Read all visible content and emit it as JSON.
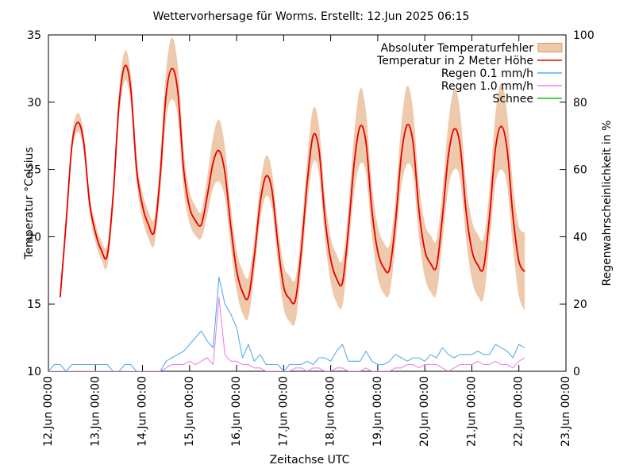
{
  "header": {
    "title": "Wettervorhersage für Worms. Erstellt: 12.Jun 2025 06:15"
  },
  "axes": {
    "x_label": "Zeitachse UTC",
    "y_left_label": "Temperatur °Celsius",
    "y_right_label": "Regenwahrscheinlichkeit in %"
  },
  "chart_data": {
    "type": "line",
    "title": "Wettervorhersage für Worms. Erstellt: 12.Jun 2025 06:15",
    "xlabel": "Zeitachse UTC",
    "ylabel_left": "Temperatur °Celsius",
    "ylabel_right": "Regenwahrscheinlichkeit in %",
    "x_tick_labels": [
      "12.Jun 00:00",
      "13.Jun 00:00",
      "14.Jun 00:00",
      "15.Jun 00:00",
      "16.Jun 00:00",
      "17.Jun 00:00",
      "18.Jun 00:00",
      "19.Jun 00:00",
      "20.Jun 00:00",
      "21.Jun 00:00",
      "22.Jun 00:00",
      "23.Jun 00:00"
    ],
    "xlim_hours": [
      0,
      264
    ],
    "ylim_left": [
      10,
      35
    ],
    "yticks_left": [
      10,
      15,
      20,
      25,
      30,
      35
    ],
    "ylim_right": [
      0,
      100
    ],
    "yticks_right": [
      0,
      20,
      40,
      60,
      80,
      100
    ],
    "grid": false,
    "legend_position": "top-right-inside",
    "legend": [
      {
        "label": "Absoluter Temperaturfehler",
        "style": "band",
        "color": "#eec9ab"
      },
      {
        "label": "Temperatur in 2 Meter Höhe",
        "style": "line",
        "color": "#e60000"
      },
      {
        "label": "Regen 0.1 mm/h",
        "style": "line",
        "color": "#56aee8"
      },
      {
        "label": "Regen 1.0 mm/h",
        "style": "line",
        "color": "#ee82ee"
      },
      {
        "label": "Schnee",
        "style": "line",
        "color": "#00cc00"
      }
    ],
    "series": [
      {
        "name": "Absoluter Temperaturfehler",
        "type": "band",
        "axis": "left",
        "color": "#eec9ab",
        "start_hour": 6,
        "step_hours": 3,
        "upper": [
          15.9,
          21.5,
          27.4,
          29.2,
          27.7,
          23.2,
          21.0,
          19.7,
          19.4,
          23.9,
          30.8,
          33.8,
          32.1,
          26.0,
          23.3,
          21.9,
          21.4,
          25.8,
          32.3,
          34.8,
          32.7,
          26.5,
          23.4,
          22.3,
          21.9,
          24.4,
          27.4,
          28.7,
          26.7,
          22.3,
          19.0,
          17.5,
          17.0,
          19.8,
          23.8,
          26.0,
          24.9,
          20.9,
          17.9,
          17.1,
          16.9,
          20.5,
          25.7,
          29.5,
          28.3,
          23.1,
          20.0,
          18.7,
          18.3,
          22.1,
          27.7,
          31.0,
          29.3,
          23.9,
          20.8,
          19.6,
          19.4,
          22.7,
          28.3,
          31.2,
          29.4,
          24.0,
          21.0,
          20.1,
          19.8,
          23.4,
          28.4,
          31.0,
          29.3,
          24.1,
          21.2,
          20.2,
          19.9,
          23.5,
          29.1,
          31.4,
          29.2,
          23.8,
          20.8,
          20.3
        ],
        "lower": [
          15.1,
          20.5,
          26.2,
          27.8,
          26.3,
          21.8,
          19.6,
          18.3,
          17.8,
          22.1,
          28.8,
          31.6,
          29.9,
          24.0,
          21.3,
          19.9,
          19.4,
          23.2,
          28.7,
          30.2,
          28.9,
          23.5,
          21.0,
          20.1,
          19.9,
          21.6,
          23.6,
          24.1,
          22.9,
          19.3,
          16.0,
          14.3,
          14.0,
          17.2,
          21.2,
          23.0,
          22.1,
          18.1,
          14.7,
          13.7,
          13.7,
          17.5,
          22.3,
          25.5,
          24.7,
          19.9,
          16.6,
          15.1,
          14.9,
          18.9,
          23.3,
          25.4,
          24.7,
          20.1,
          17.0,
          15.8,
          15.8,
          19.3,
          23.7,
          25.4,
          24.6,
          20.0,
          17.0,
          15.9,
          15.8,
          19.6,
          23.6,
          25.0,
          24.3,
          19.9,
          16.8,
          15.6,
          15.5,
          19.5,
          23.9,
          25.0,
          23.8,
          19.2,
          15.6,
          14.5
        ]
      },
      {
        "name": "Temperatur in 2 Meter Höhe",
        "type": "line",
        "axis": "left",
        "color": "#e60000",
        "start_hour": 6,
        "step_hours": 3,
        "values": [
          15.5,
          21.0,
          26.8,
          28.5,
          27.0,
          22.5,
          20.3,
          19.0,
          18.6,
          23.0,
          29.8,
          32.7,
          31.0,
          25.0,
          22.3,
          20.9,
          20.4,
          24.5,
          30.5,
          32.5,
          30.8,
          25.0,
          22.2,
          21.2,
          20.9,
          23.0,
          25.5,
          26.4,
          24.8,
          20.8,
          17.5,
          15.9,
          15.5,
          18.5,
          22.5,
          24.5,
          23.5,
          19.5,
          16.3,
          15.4,
          15.3,
          19.0,
          24.0,
          27.5,
          26.5,
          21.5,
          18.3,
          16.9,
          16.6,
          20.5,
          25.5,
          28.2,
          27.0,
          22.0,
          18.9,
          17.7,
          17.6,
          21.0,
          26.0,
          28.3,
          27.0,
          22.0,
          19.0,
          18.0,
          17.8,
          21.5,
          26.0,
          28.0,
          26.8,
          22.0,
          19.0,
          17.9,
          17.7,
          21.5,
          26.5,
          28.2,
          26.5,
          21.5,
          18.2,
          17.4
        ]
      },
      {
        "name": "Regen 0.1 mm/h",
        "type": "line",
        "axis": "right",
        "color": "#56aee8",
        "start_hour": 0,
        "step_hours": 3,
        "values": [
          0,
          2,
          2,
          0,
          2,
          2,
          2,
          2,
          2,
          2,
          2,
          0,
          0,
          2,
          2,
          0,
          0,
          0,
          0,
          0,
          3,
          4,
          5,
          6,
          8,
          10,
          12,
          9,
          7,
          28,
          20,
          17,
          13,
          4,
          8,
          3,
          5,
          2,
          2,
          2,
          0,
          2,
          2,
          2,
          3,
          2,
          4,
          4,
          3,
          6,
          8,
          3,
          3,
          3,
          6,
          3,
          2,
          2,
          3,
          5,
          4,
          3,
          4,
          4,
          3,
          5,
          4,
          7,
          5,
          4,
          5,
          5,
          5,
          6,
          5,
          5,
          8,
          7,
          6,
          4,
          8,
          7
        ]
      },
      {
        "name": "Regen 1.0 mm/h",
        "type": "line",
        "axis": "right",
        "color": "#ee82ee",
        "start_hour": 0,
        "step_hours": 3,
        "values": [
          0,
          0,
          0,
          0,
          0,
          0,
          0,
          0,
          0,
          0,
          0,
          0,
          0,
          0,
          0,
          0,
          0,
          0,
          0,
          0,
          1,
          2,
          2,
          2,
          3,
          2,
          3,
          4,
          2,
          22,
          5,
          3,
          3,
          2,
          2,
          1,
          1,
          0,
          0,
          0,
          0,
          0,
          1,
          1,
          0,
          1,
          1,
          0,
          0,
          1,
          1,
          0,
          0,
          0,
          1,
          0,
          0,
          0,
          0,
          1,
          1,
          2,
          2,
          1,
          2,
          2,
          2,
          1,
          0,
          1,
          2,
          2,
          2,
          3,
          2,
          2,
          3,
          2,
          2,
          1,
          3,
          4
        ]
      },
      {
        "name": "Schnee",
        "type": "line",
        "axis": "right",
        "color": "#00cc00",
        "start_hour": 0,
        "step_hours": 3,
        "values": []
      }
    ]
  }
}
